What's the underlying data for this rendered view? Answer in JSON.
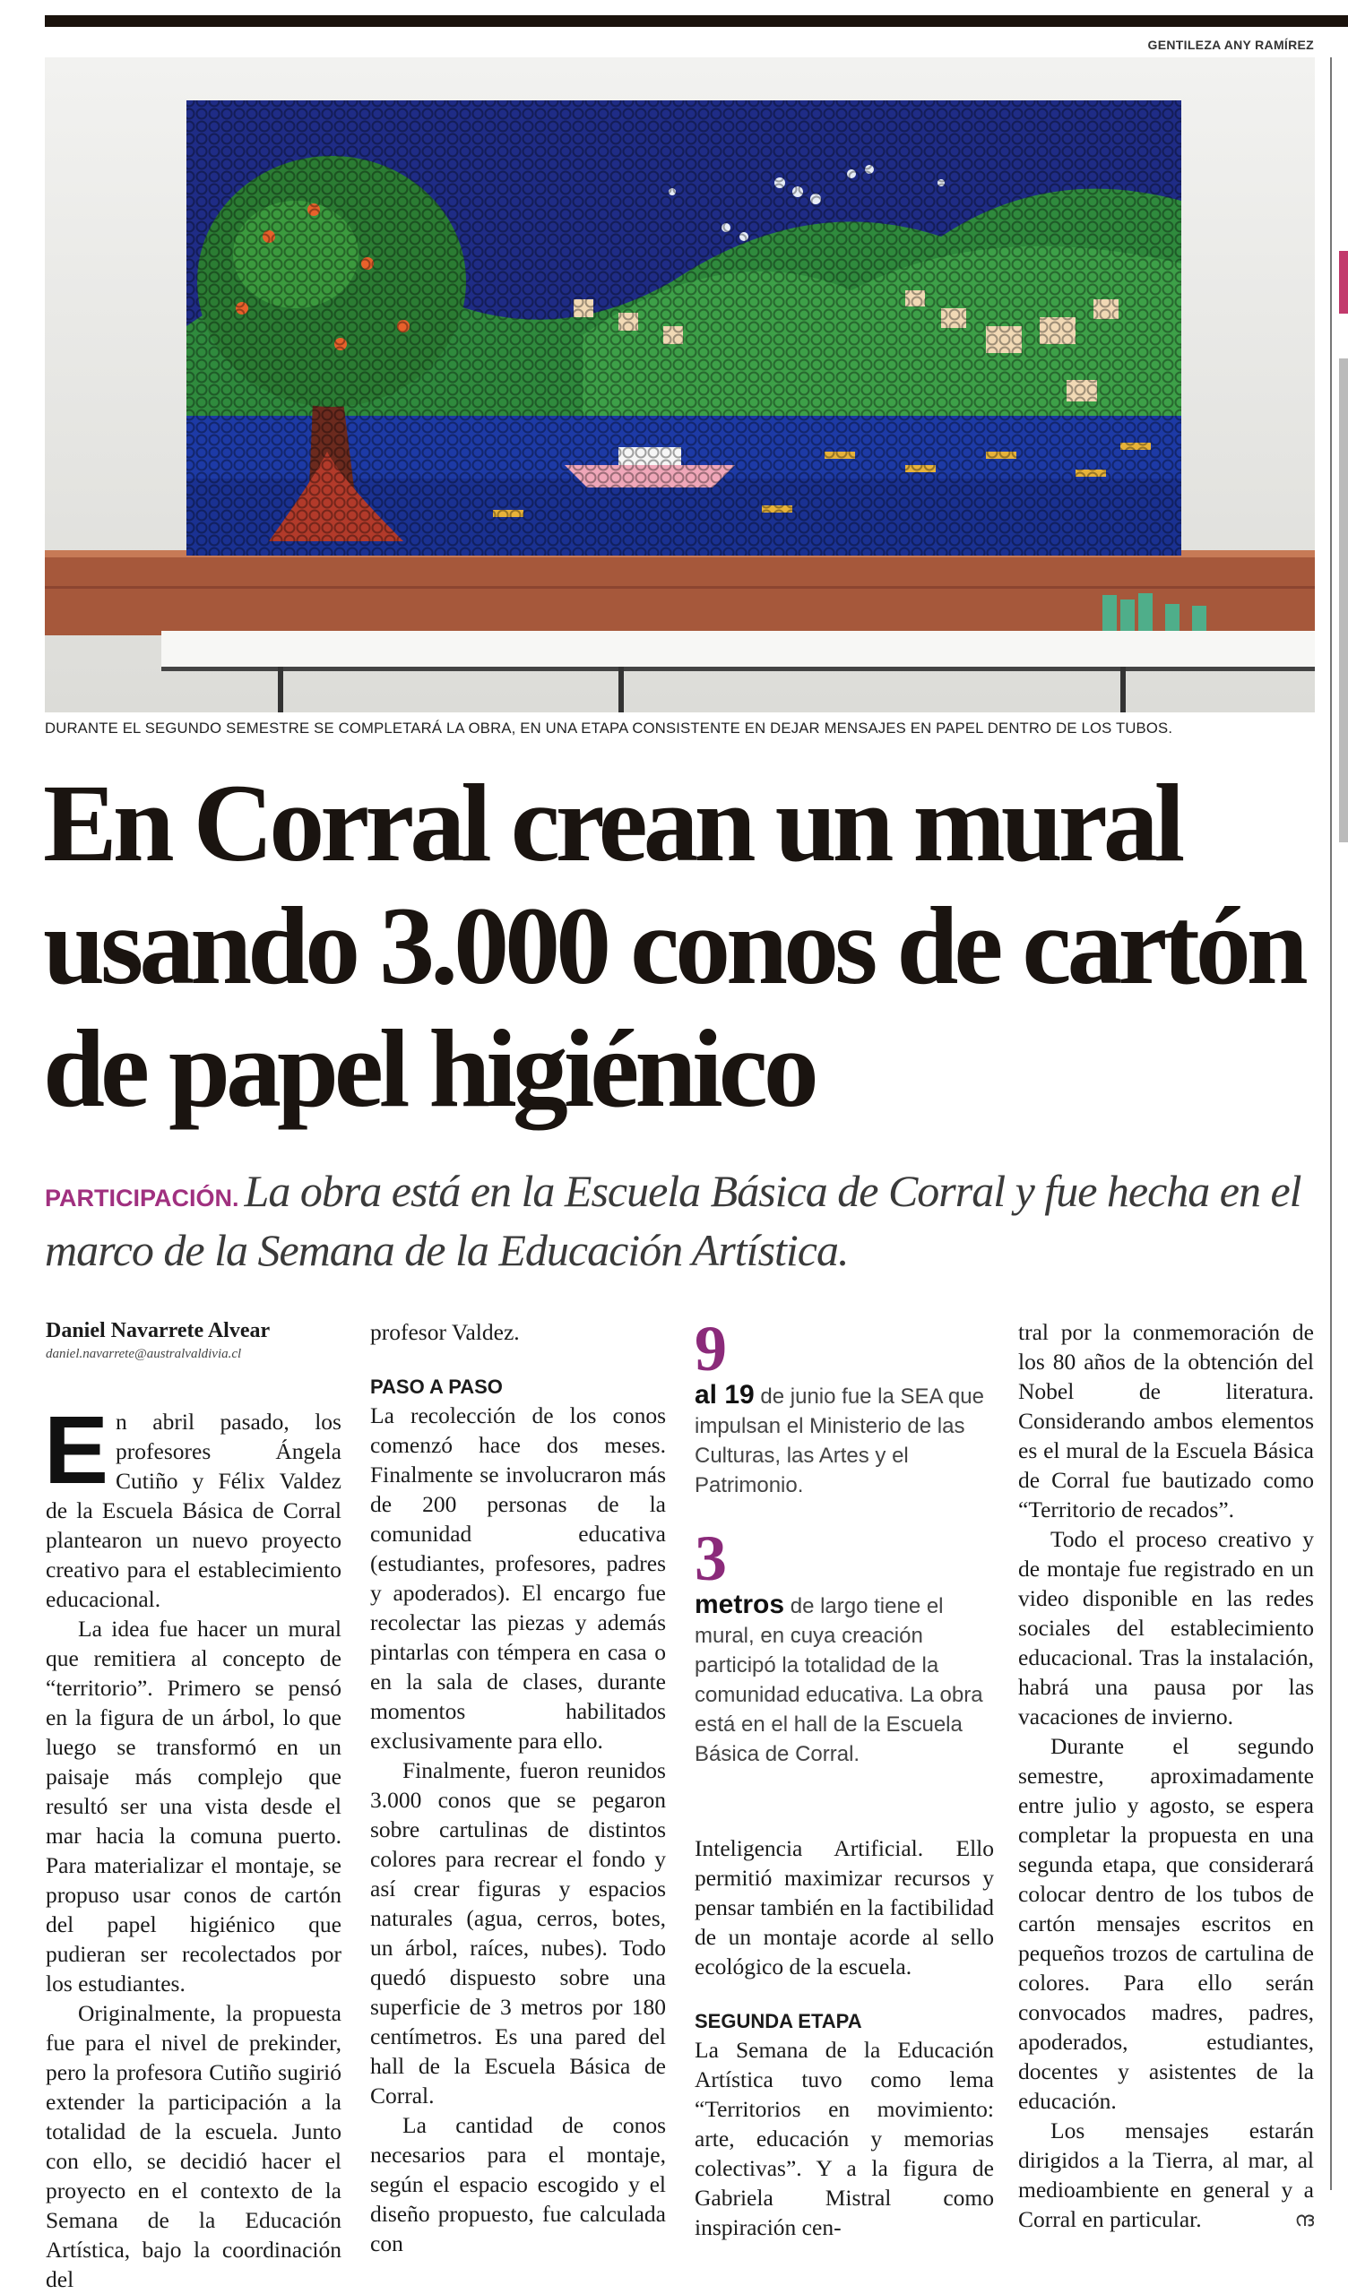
{
  "photo": {
    "credit": "GENTILEZA ANY RAMÍREZ",
    "caption": "DURANTE EL SEGUNDO SEMESTRE SE COMPLETARÁ LA OBRA, EN UNA ETAPA CONSISTENTE EN DEJAR MENSAJES EN PAPEL DENTRO DE LOS TUBOS."
  },
  "headline": "En Corral crean un mural usando 3.000 conos de cartón de papel higiénico",
  "deck": {
    "kicker": "PARTICIPACIÓN.",
    "text": "La obra está en la Escuela Básica de Corral y fue hecha en el marco de la Semana de la Educación Artística."
  },
  "byline": {
    "author": "Daniel Navarrete Alvear",
    "email": "daniel.navarrete@australvaldivia.cl"
  },
  "colors": {
    "accent": "#a0307f",
    "stat_number": "#8b2a7a"
  },
  "body": {
    "dropcap": "E",
    "col1": [
      "n abril pasado, los profesores Ángela Cutiño y Félix Valdez de la Escuela Básica de Corral plantearon un nuevo proyecto creativo para el establecimiento educacional.",
      "La idea fue hacer un mural que remitiera al concepto de “territorio”. Primero se pensó en la figura de un árbol, lo que luego se transformó en un paisaje más complejo que resultó ser una vista desde el mar hacia la comuna puerto. Para materializar el montaje, se propuso usar conos de cartón del papel higiénico que pudieran ser recolectados por los estudiantes.",
      "Originalmente, la propuesta fue para el nivel de prekinder, pero la profesora Cutiño sugirió extender la participación a la totalidad de la escuela. Junto con ello, se decidió hacer el proyecto en el contexto de la Semana de la Educación Artística, bajo la coordinación del"
    ],
    "col2_lead": "profesor Valdez.",
    "subhead1": "PASO A PASO",
    "col2": [
      "La recolección de los conos comenzó hace dos meses. Finalmente se involucraron más de 200 personas de la comunidad educativa (estudiantes, profesores, padres y apoderados). El encargo fue recolectar las piezas y además pintarlas con témpera en casa o en la sala de clases, durante momentos habilitados exclusivamente para ello.",
      "Finalmente, fueron reunidos 3.000 conos que se pegaron sobre cartulinas de distintos colores para recrear el fondo y así crear figuras y espacios naturales (agua, cerros, botes, un árbol, raíces, nubes). Todo quedó dispuesto sobre una superficie de 3 metros por 180 centímetros. Es una pared del hall de la Escuela Básica de Corral.",
      "La cantidad de conos necesarios para el montaje, según el espacio escogido y el diseño propuesto, fue calculada con"
    ],
    "col3_lead": "Inteligencia Artificial. Ello permitió maximizar recursos y pensar también en la factibilidad de un montaje acorde al sello ecológico de la escuela.",
    "subhead2": "SEGUNDA ETAPA",
    "col3": "La Semana de la Educación Artística tuvo como lema “Territorios en movimiento: arte, educación y memorias colectivas”. Y a la figura de Gabriela Mistral como inspiración cen-",
    "col4": [
      "tral por la conmemoración de los 80 años de la obtención del Nobel de literatura. Considerando ambos elementos es el mural de la Escuela Básica de Corral fue bautizado como “Territorio de recados”.",
      "Todo el proceso creativo y de montaje fue registrado en un video disponible en las redes sociales del establecimiento educacional. Tras la instalación, habrá una pausa por las vacaciones de invierno.",
      "Durante el segundo semestre, aproximadamente entre julio y agosto, se espera completar la propuesta en una segunda etapa, que considerará colocar dentro de los tubos de cartón mensajes escritos en pequeños trozos de cartulina de colores. Para ello serán convocados madres, padres, apoderados, estudiantes, docentes y asistentes de la educación.",
      "Los mensajes estarán dirigidos a la Tierra, al mar, al medioambiente en general y a Corral en particular."
    ],
    "endmark": "ന്ദ"
  },
  "stats": [
    {
      "number": "9",
      "lead": "al 19",
      "text": "de junio fue la SEA que impulsan el Ministerio de las Culturas, las Artes y el Patrimonio."
    },
    {
      "number": "3",
      "lead": "metros",
      "text": "de largo tiene el mural, en cuya creación participó la totalidad de la comunidad educativa. La obra está en el hall de la Escuela Básica de Corral."
    }
  ]
}
